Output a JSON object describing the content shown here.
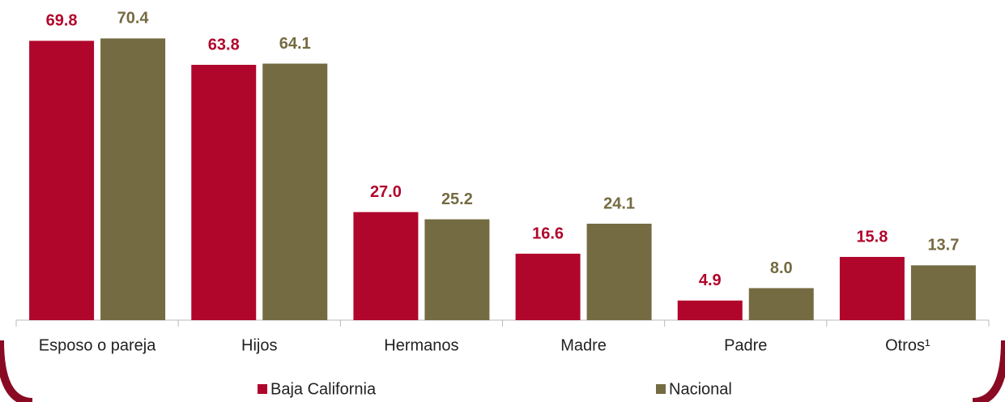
{
  "chart_data": {
    "type": "bar",
    "categories": [
      "Esposo o pareja",
      "Hijos",
      "Hermanos",
      "Madre",
      "Padre",
      "Otros¹"
    ],
    "series": [
      {
        "name": "Baja California",
        "color": "#b0062c",
        "values": [
          69.8,
          63.8,
          27,
          16.6,
          4.9,
          15.8
        ],
        "value_labels": [
          "69.8",
          "63.8",
          "27.0",
          "16.6",
          "4.9",
          "15.8"
        ]
      },
      {
        "name": "Nacional",
        "color": "#756b42",
        "values": [
          70.4,
          64.1,
          25.2,
          24.1,
          8,
          13.7
        ],
        "value_labels": [
          "70.4",
          "64.1",
          "25.2",
          "24.1",
          "8.0",
          "13.7"
        ]
      }
    ],
    "ylim": [
      0,
      80
    ]
  }
}
